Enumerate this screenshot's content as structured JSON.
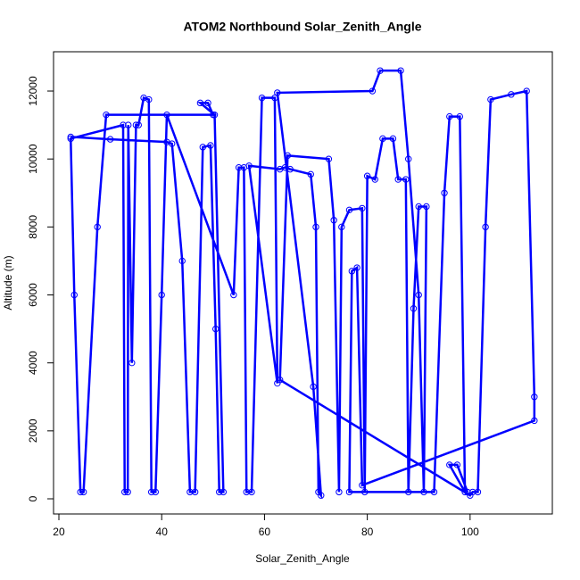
{
  "chart_data": {
    "type": "scatter",
    "title": "ATOM2 Northbound Solar_Zenith_Angle",
    "x_label": "Solar_Zenith_Angle",
    "y_label": "Altitude (m)",
    "color": "#0000ff",
    "x": [
      22.3,
      30,
      41,
      42,
      44,
      45.5,
      46.5,
      48,
      49.5,
      50.5,
      51.2,
      52,
      50.3,
      47.5,
      49,
      50,
      29.2,
      27.5,
      24.8,
      24.2,
      23,
      22.3,
      32.5,
      32.8,
      33.4,
      33.5,
      34.2,
      35,
      35.5,
      36.5,
      37.5,
      38,
      38.8,
      40,
      41,
      54,
      55,
      56,
      56.5,
      57.5,
      59.5,
      62,
      62.5,
      57,
      63,
      64,
      65,
      69,
      70,
      70.5,
      71,
      69.5,
      62.5,
      81,
      82.5,
      86.5,
      88,
      90,
      91,
      91.5,
      90,
      89,
      88,
      87.5,
      86,
      85,
      83,
      81.5,
      80,
      79.5,
      79,
      76.5,
      75,
      74.5,
      73.5,
      72.5,
      64.5,
      63,
      100,
      100.5,
      101.5,
      103,
      104,
      108,
      111,
      112.5,
      112.5,
      79,
      78,
      77,
      76.5,
      93,
      95,
      96,
      98,
      99,
      96,
      97.5,
      99.5
    ],
    "values": [
      10650,
      10580,
      10500,
      10450,
      7000,
      200,
      200,
      10350,
      10400,
      5000,
      200,
      200,
      11300,
      11650,
      11650,
      11300,
      11300,
      8000,
      200,
      200,
      6000,
      10600,
      11000,
      200,
      200,
      11000,
      4000,
      11000,
      11000,
      11800,
      11750,
      200,
      200,
      6000,
      11300,
      6000,
      9750,
      9750,
      200,
      200,
      11800,
      11800,
      3400,
      9800,
      9700,
      9750,
      9700,
      9550,
      8000,
      200,
      100,
      3300,
      11950,
      12000,
      12600,
      12600,
      10000,
      6000,
      200,
      8600,
      8600,
      5600,
      200,
      9400,
      9400,
      10600,
      10600,
      9400,
      9500,
      200,
      8550,
      8500,
      8000,
      200,
      8200,
      10000,
      10100,
      3500,
      100,
      200,
      200,
      8000,
      11750,
      11900,
      12000,
      3000,
      2300,
      400,
      6800,
      6700,
      200,
      200,
      9000,
      11250,
      11250,
      200,
      1000,
      1000,
      200
    ],
    "xlim": [
      18.96,
      116.0
    ],
    "ylim": [
      -446,
      13156
    ],
    "xticks": [
      20,
      40,
      60,
      80,
      100
    ],
    "yticks": [
      0,
      2000,
      4000,
      6000,
      8000,
      10000,
      12000
    ]
  }
}
